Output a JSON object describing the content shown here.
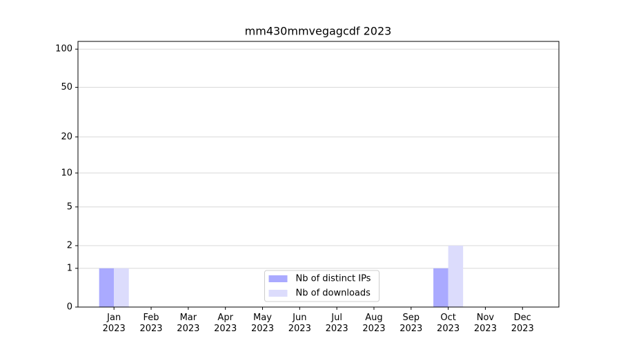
{
  "chart_data": {
    "type": "bar",
    "title": "mm430mmvegagcdf 2023",
    "categories": [
      "Jan\n2023",
      "Feb\n2023",
      "Mar\n2023",
      "Apr\n2023",
      "May\n2023",
      "Jun\n2023",
      "Jul\n2023",
      "Aug\n2023",
      "Sep\n2023",
      "Oct\n2023",
      "Nov\n2023",
      "Dec\n2023"
    ],
    "series": [
      {
        "name": "Nb of distinct IPs",
        "color": "#aaaaff",
        "values": [
          1,
          0,
          0,
          0,
          0,
          0,
          0,
          0,
          0,
          1,
          0,
          0
        ]
      },
      {
        "name": "Nb of downloads",
        "color": "#dcdcfc",
        "values": [
          1,
          0,
          0,
          0,
          0,
          0,
          0,
          0,
          0,
          2,
          0,
          0
        ]
      }
    ],
    "yscale": "log1p",
    "ylim": [
      0,
      115
    ],
    "yticks": [
      0,
      1,
      2,
      5,
      10,
      20,
      50,
      100
    ],
    "grid": true,
    "legend": "lower center"
  }
}
